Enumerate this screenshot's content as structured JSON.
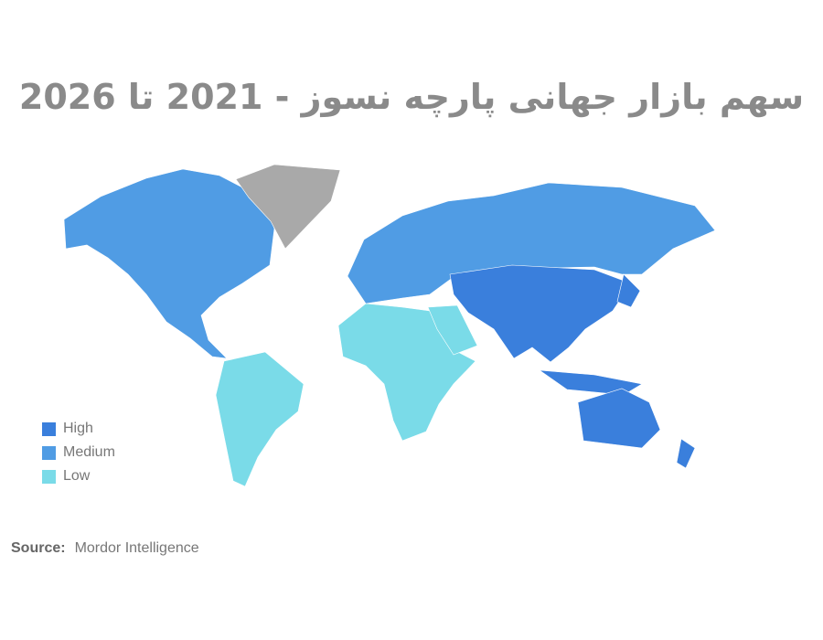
{
  "title": "سهم بازار جهانی پارچه نسوز - 2021 تا 2026",
  "legend": [
    {
      "label": "High",
      "color": "#3a7fdc"
    },
    {
      "label": "Medium",
      "color": "#509ce4"
    },
    {
      "label": "Low",
      "color": "#7adbe8"
    }
  ],
  "no_data_color": "#a9a9a9",
  "regions": {
    "north_america": "Medium",
    "europe_russia": "Medium",
    "asia_pacific": "High",
    "australia_nz": "High",
    "south_america": "Low",
    "africa": "Low",
    "middle_east": "Low"
  },
  "source": {
    "label": "Source:",
    "value": "Mordor Intelligence"
  }
}
